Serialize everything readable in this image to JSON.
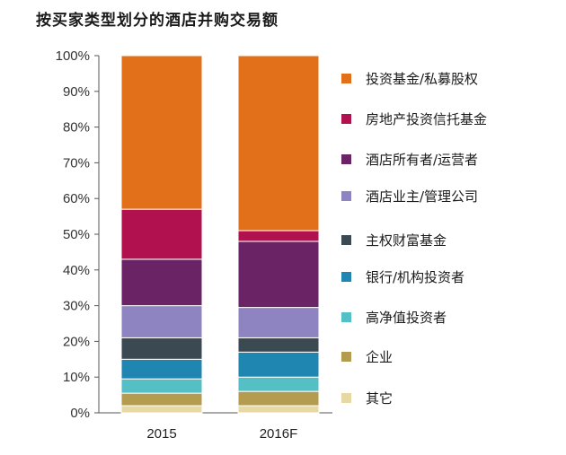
{
  "chart_data": {
    "type": "bar",
    "stacked": true,
    "title": "按买家类型划分的酒店并购交易额",
    "xlabel": "",
    "ylabel": "",
    "ylim": [
      0,
      100
    ],
    "y_ticks": [
      "0%",
      "10%",
      "20%",
      "30%",
      "40%",
      "50%",
      "60%",
      "70%",
      "80%",
      "90%",
      "100%"
    ],
    "categories": [
      "2015",
      "2016F"
    ],
    "legend_position": "right",
    "series": [
      {
        "name": "其它",
        "color": "#e6d9a3",
        "values": [
          2,
          2
        ]
      },
      {
        "name": "企业",
        "color": "#b39b4f",
        "values": [
          3.5,
          4
        ]
      },
      {
        "name": "高净值投资者",
        "color": "#54bfc4",
        "values": [
          4,
          4
        ]
      },
      {
        "name": "银行/机构投资者",
        "color": "#1f86b1",
        "values": [
          5.5,
          7
        ]
      },
      {
        "name": "主权财富基金",
        "color": "#3b4a52",
        "values": [
          6,
          4
        ]
      },
      {
        "name": "酒店业主/管理公司",
        "color": "#8e84c2",
        "values": [
          9,
          8.5
        ]
      },
      {
        "name": "酒店所有者/运营者",
        "color": "#6a2466",
        "values": [
          13,
          18.5
        ]
      },
      {
        "name": "房地产投资信托基金",
        "color": "#b1124f",
        "values": [
          14,
          3
        ]
      },
      {
        "name": "投资基金/私募股权",
        "color": "#e2701a",
        "values": [
          43,
          49
        ]
      }
    ]
  }
}
